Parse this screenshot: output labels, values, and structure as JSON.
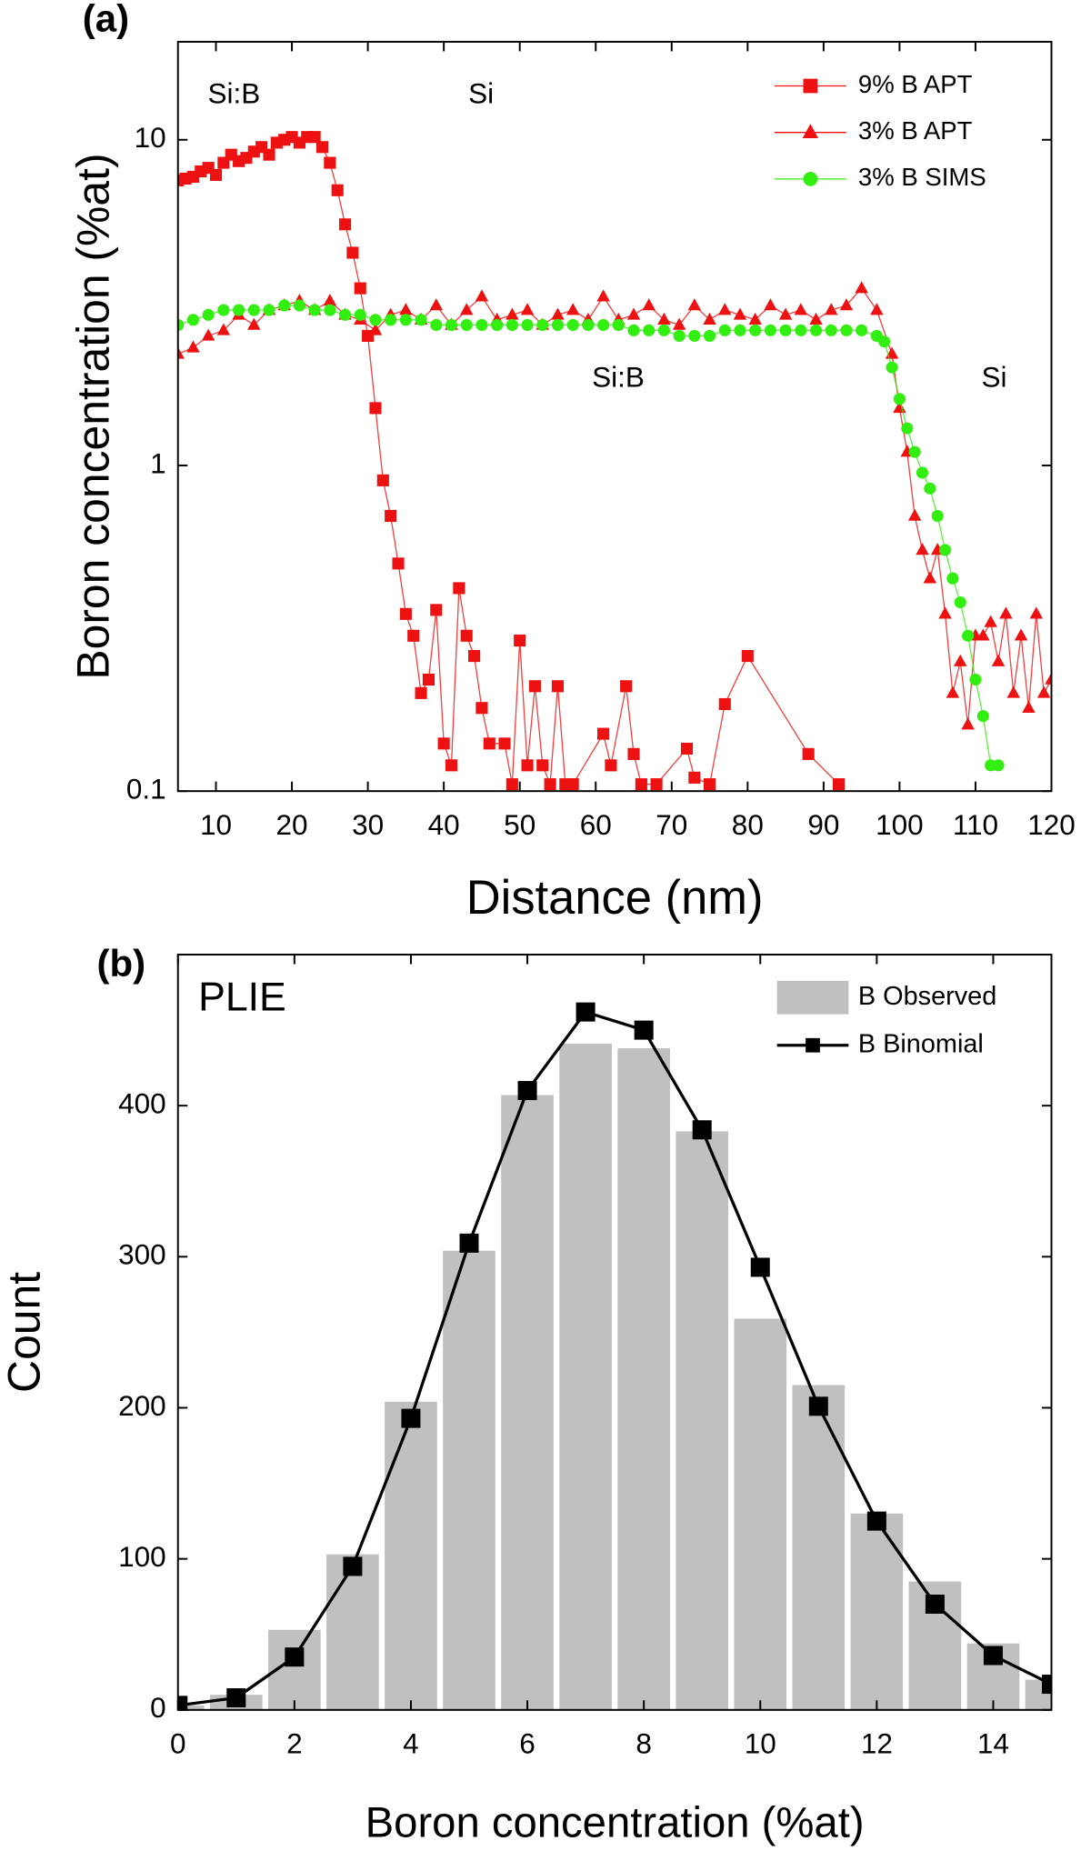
{
  "chart_data": [
    {
      "type": "line",
      "panel_label": "(a)",
      "x_label": "Distance (nm)",
      "y_label": "Boron concentration (%at)",
      "xlim": [
        5,
        120
      ],
      "xticks": [
        10,
        20,
        30,
        40,
        50,
        60,
        70,
        80,
        90,
        100,
        110,
        120
      ],
      "ylim": [
        0.1,
        20
      ],
      "yticks": [
        0.1,
        1,
        10
      ],
      "log_y": true,
      "legend": "top-right",
      "annotations": [
        "Si:B",
        "Si",
        "Si:B",
        "Si"
      ],
      "series": [
        {
          "name": "9% B APT",
          "color": "#ee1111",
          "marker": "square",
          "x": [
            5,
            6,
            7,
            8,
            9,
            10,
            11,
            12,
            13,
            14,
            15,
            16,
            17,
            18,
            19,
            20,
            21,
            22,
            23,
            24,
            25,
            26,
            27,
            28,
            29,
            30,
            31,
            32,
            33,
            34,
            35,
            36,
            37,
            38,
            39,
            40,
            41,
            42,
            43,
            44,
            45,
            46,
            48,
            49,
            50,
            51,
            52,
            53,
            54,
            55,
            56,
            57,
            61,
            62,
            64,
            65,
            66,
            68,
            72,
            73,
            75,
            77,
            80,
            88,
            92
          ],
          "values": [
            7.5,
            7.6,
            7.7,
            8.0,
            8.2,
            7.8,
            8.5,
            9.0,
            8.6,
            8.8,
            9.2,
            9.5,
            9.0,
            9.8,
            10.0,
            10.2,
            9.8,
            10.2,
            10.2,
            9.5,
            8.5,
            7.0,
            5.5,
            4.5,
            3.5,
            2.5,
            1.5,
            0.9,
            0.7,
            0.5,
            0.35,
            0.3,
            0.2,
            0.22,
            0.36,
            0.14,
            0.12,
            0.42,
            0.3,
            0.26,
            0.18,
            0.14,
            0.14,
            0.105,
            0.29,
            0.12,
            0.21,
            0.12,
            0.105,
            0.21,
            0.105,
            0.105,
            0.15,
            0.12,
            0.21,
            0.13,
            0.105,
            0.105,
            0.135,
            0.11,
            0.105,
            0.185,
            0.26,
            0.13,
            0.105
          ]
        },
        {
          "name": "3% B APT",
          "color": "#ee1111",
          "marker": "triangle",
          "x": [
            5,
            7,
            9,
            11,
            13,
            15,
            17,
            19,
            21,
            23,
            25,
            27,
            29,
            31,
            33,
            35,
            37,
            39,
            41,
            43,
            45,
            47,
            49,
            51,
            53,
            55,
            57,
            59,
            61,
            63,
            65,
            67,
            69,
            71,
            73,
            75,
            77,
            79,
            81,
            83,
            85,
            87,
            89,
            91,
            93,
            95,
            97,
            99,
            100,
            101,
            102,
            103,
            104,
            105,
            106,
            107,
            108,
            109,
            110,
            111,
            112,
            113,
            114,
            115,
            116,
            117,
            118,
            119,
            120
          ],
          "values": [
            2.2,
            2.3,
            2.5,
            2.6,
            2.9,
            2.7,
            3.0,
            3.1,
            3.2,
            3.0,
            3.2,
            2.9,
            2.8,
            2.6,
            2.9,
            3.0,
            2.8,
            3.1,
            2.7,
            3.0,
            3.3,
            2.8,
            2.9,
            3.0,
            2.7,
            2.9,
            3.0,
            2.8,
            3.3,
            2.8,
            2.9,
            3.1,
            2.8,
            2.7,
            3.1,
            2.8,
            3.0,
            2.9,
            2.8,
            3.1,
            2.9,
            3.0,
            2.8,
            3.0,
            3.1,
            3.5,
            3.0,
            2.2,
            1.5,
            1.1,
            0.7,
            0.55,
            0.45,
            0.55,
            0.35,
            0.2,
            0.25,
            0.16,
            0.3,
            0.3,
            0.33,
            0.25,
            0.35,
            0.2,
            0.3,
            0.18,
            0.35,
            0.2,
            0.22
          ]
        },
        {
          "name": "3% B SIMS",
          "color": "#33ee11",
          "marker": "circle",
          "x": [
            5,
            7,
            9,
            11,
            13,
            15,
            17,
            19,
            21,
            23,
            25,
            27,
            29,
            31,
            33,
            35,
            37,
            39,
            41,
            43,
            45,
            47,
            49,
            51,
            53,
            55,
            57,
            59,
            61,
            63,
            65,
            67,
            69,
            71,
            73,
            75,
            77,
            79,
            81,
            83,
            85,
            87,
            89,
            91,
            93,
            95,
            97,
            98,
            99,
            100,
            101,
            102,
            103,
            104,
            105,
            106,
            107,
            108,
            109,
            110,
            111,
            112,
            113
          ],
          "values": [
            2.7,
            2.8,
            2.9,
            3.0,
            3.0,
            3.0,
            3.0,
            3.1,
            3.1,
            3.0,
            3.0,
            2.9,
            2.9,
            2.8,
            2.8,
            2.8,
            2.8,
            2.7,
            2.7,
            2.7,
            2.7,
            2.7,
            2.7,
            2.7,
            2.7,
            2.7,
            2.7,
            2.7,
            2.7,
            2.7,
            2.6,
            2.6,
            2.6,
            2.5,
            2.5,
            2.5,
            2.6,
            2.6,
            2.6,
            2.6,
            2.6,
            2.6,
            2.6,
            2.6,
            2.6,
            2.6,
            2.5,
            2.4,
            2.0,
            1.6,
            1.3,
            1.1,
            0.95,
            0.85,
            0.7,
            0.55,
            0.45,
            0.38,
            0.3,
            0.22,
            0.17,
            0.12,
            0.12
          ]
        }
      ]
    },
    {
      "type": "bar",
      "panel_label": "(b)",
      "subtitle": "PLIE",
      "x_label": "Boron concentration (%at)",
      "y_label": "Count",
      "xlim": [
        0,
        15
      ],
      "xticks": [
        0,
        2,
        4,
        6,
        8,
        10,
        12,
        14
      ],
      "ylim": [
        0,
        500
      ],
      "yticks": [
        0,
        100,
        200,
        300,
        400
      ],
      "legend": "top-right",
      "categories": [
        0,
        1,
        2,
        3,
        4,
        5,
        6,
        7,
        8,
        9,
        10,
        11,
        12,
        13,
        14,
        15
      ],
      "series": [
        {
          "name": "B Observed",
          "color": "#c0c0c0",
          "type": "bar",
          "values": [
            3,
            10,
            53,
            103,
            204,
            304,
            407,
            441,
            438,
            383,
            259,
            215,
            130,
            85,
            44,
            20
          ]
        },
        {
          "name": "B Binomial",
          "color": "#000000",
          "type": "line",
          "values": [
            3,
            8,
            35,
            95,
            193,
            309,
            410,
            462,
            450,
            384,
            293,
            201,
            125,
            70,
            36,
            17
          ]
        }
      ]
    }
  ]
}
